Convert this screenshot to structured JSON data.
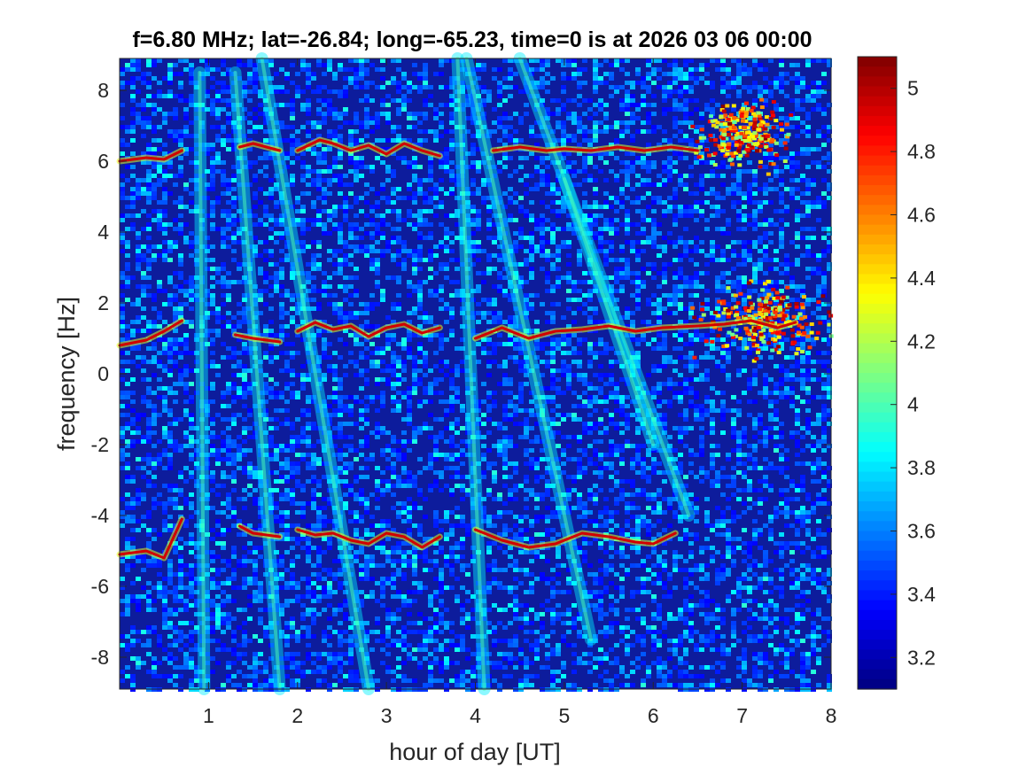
{
  "chart_data": {
    "type": "heatmap",
    "title": "f=6.80 MHz;  lat=-26.84; long=-65.23, time=0 is at 2026 03 06 00:00",
    "xlabel": "hour of day [UT]",
    "ylabel": "frequency [Hz]",
    "xlim": [
      0.0,
      8.0
    ],
    "ylim": [
      -8.9,
      8.9
    ],
    "clim": [
      3.1,
      5.1
    ],
    "colormap": "jet",
    "background_color": "#0d1c9c",
    "xticks": [
      1,
      2,
      3,
      4,
      5,
      6,
      7,
      8
    ],
    "xtick_labels": [
      "1",
      "2",
      "3",
      "4",
      "5",
      "6",
      "7",
      "8"
    ],
    "yticks": [
      -8,
      -6,
      -4,
      -2,
      0,
      2,
      4,
      6,
      8
    ],
    "ytick_labels": [
      "-8",
      "-6",
      "-4",
      "-2",
      "0",
      "2",
      "4",
      "6",
      "8"
    ],
    "colorbar_ticks": [
      3.2,
      3.4,
      3.6,
      3.8,
      4.0,
      4.2,
      4.4,
      4.6,
      4.8,
      5.0
    ],
    "colorbar_tick_labels": [
      "3.2",
      "3.4",
      "3.6",
      "3.8",
      "4",
      "4.2",
      "4.4",
      "4.6",
      "4.8",
      "5"
    ],
    "series": [
      {
        "hours": [
          0.0,
          0.3,
          0.5,
          0.7
        ],
        "freq": [
          6.0,
          6.1,
          6.05,
          6.3
        ]
      },
      {
        "hours": [
          1.35,
          1.5,
          1.8
        ],
        "freq": [
          6.4,
          6.5,
          6.3
        ]
      },
      {
        "hours": [
          2.0,
          2.25,
          2.4,
          2.6,
          2.8,
          3.0,
          3.2,
          3.4,
          3.6
        ],
        "freq": [
          6.3,
          6.6,
          6.5,
          6.3,
          6.45,
          6.2,
          6.5,
          6.3,
          6.15
        ]
      },
      {
        "hours": [
          4.2,
          4.5,
          4.8,
          5.0,
          5.3,
          5.6,
          5.9,
          6.2,
          6.5
        ],
        "freq": [
          6.3,
          6.4,
          6.3,
          6.35,
          6.3,
          6.4,
          6.3,
          6.4,
          6.3
        ]
      },
      {
        "hours": [
          0.0,
          0.3,
          0.5,
          0.7
        ],
        "freq": [
          0.8,
          0.95,
          1.2,
          1.5
        ]
      },
      {
        "hours": [
          1.3,
          1.5,
          1.8
        ],
        "freq": [
          1.1,
          1.0,
          0.9
        ]
      },
      {
        "hours": [
          2.0,
          2.2,
          2.4,
          2.6,
          2.8,
          3.0,
          3.2,
          3.4,
          3.6
        ],
        "freq": [
          1.2,
          1.45,
          1.25,
          1.35,
          1.05,
          1.3,
          1.4,
          1.15,
          1.3
        ]
      },
      {
        "hours": [
          4.0,
          4.3,
          4.6,
          4.9,
          5.2,
          5.5,
          5.8,
          6.1,
          6.5,
          6.8,
          7.1,
          7.4,
          7.6
        ],
        "freq": [
          1.0,
          1.3,
          1.0,
          1.2,
          1.25,
          1.35,
          1.2,
          1.3,
          1.35,
          1.4,
          1.5,
          1.3,
          1.45
        ]
      },
      {
        "hours": [
          0.0,
          0.3,
          0.5,
          0.7
        ],
        "freq": [
          -5.1,
          -5.0,
          -5.2,
          -4.1
        ]
      },
      {
        "hours": [
          1.35,
          1.5,
          1.8
        ],
        "freq": [
          -4.3,
          -4.5,
          -4.6
        ]
      },
      {
        "hours": [
          2.0,
          2.2,
          2.4,
          2.6,
          2.8,
          3.0,
          3.2,
          3.4,
          3.6
        ],
        "freq": [
          -4.4,
          -4.55,
          -4.5,
          -4.7,
          -4.8,
          -4.5,
          -4.6,
          -4.9,
          -4.6
        ]
      },
      {
        "hours": [
          4.0,
          4.3,
          4.6,
          4.9,
          5.2,
          5.5,
          5.8,
          6.0,
          6.25
        ],
        "freq": [
          -4.4,
          -4.7,
          -4.9,
          -4.8,
          -4.5,
          -4.6,
          -4.75,
          -4.8,
          -4.5
        ]
      }
    ],
    "diffuse_bands": [
      {
        "hours": [
          0.9,
          0.95
        ],
        "freq": [
          8.5,
          -8.9
        ]
      },
      {
        "hours": [
          1.3,
          1.8
        ],
        "freq": [
          8.5,
          -8.9
        ]
      },
      {
        "hours": [
          1.6,
          2.8
        ],
        "freq": [
          8.9,
          -8.9
        ]
      },
      {
        "hours": [
          3.8,
          4.1
        ],
        "freq": [
          8.9,
          -8.9
        ]
      },
      {
        "hours": [
          3.9,
          5.3
        ],
        "freq": [
          8.9,
          -7.5
        ]
      },
      {
        "hours": [
          4.5,
          6.4
        ],
        "freq": [
          8.9,
          -4.0
        ]
      },
      {
        "hours": [
          5.0,
          6.0
        ],
        "freq": [
          5.5,
          -2.0
        ]
      }
    ],
    "hotspots": [
      {
        "hour": 7.0,
        "freq": 6.8,
        "spread_h": 0.45,
        "spread_f": 0.8
      },
      {
        "hour": 7.2,
        "freq": 1.6,
        "spread_h": 0.6,
        "spread_f": 0.9
      }
    ]
  }
}
